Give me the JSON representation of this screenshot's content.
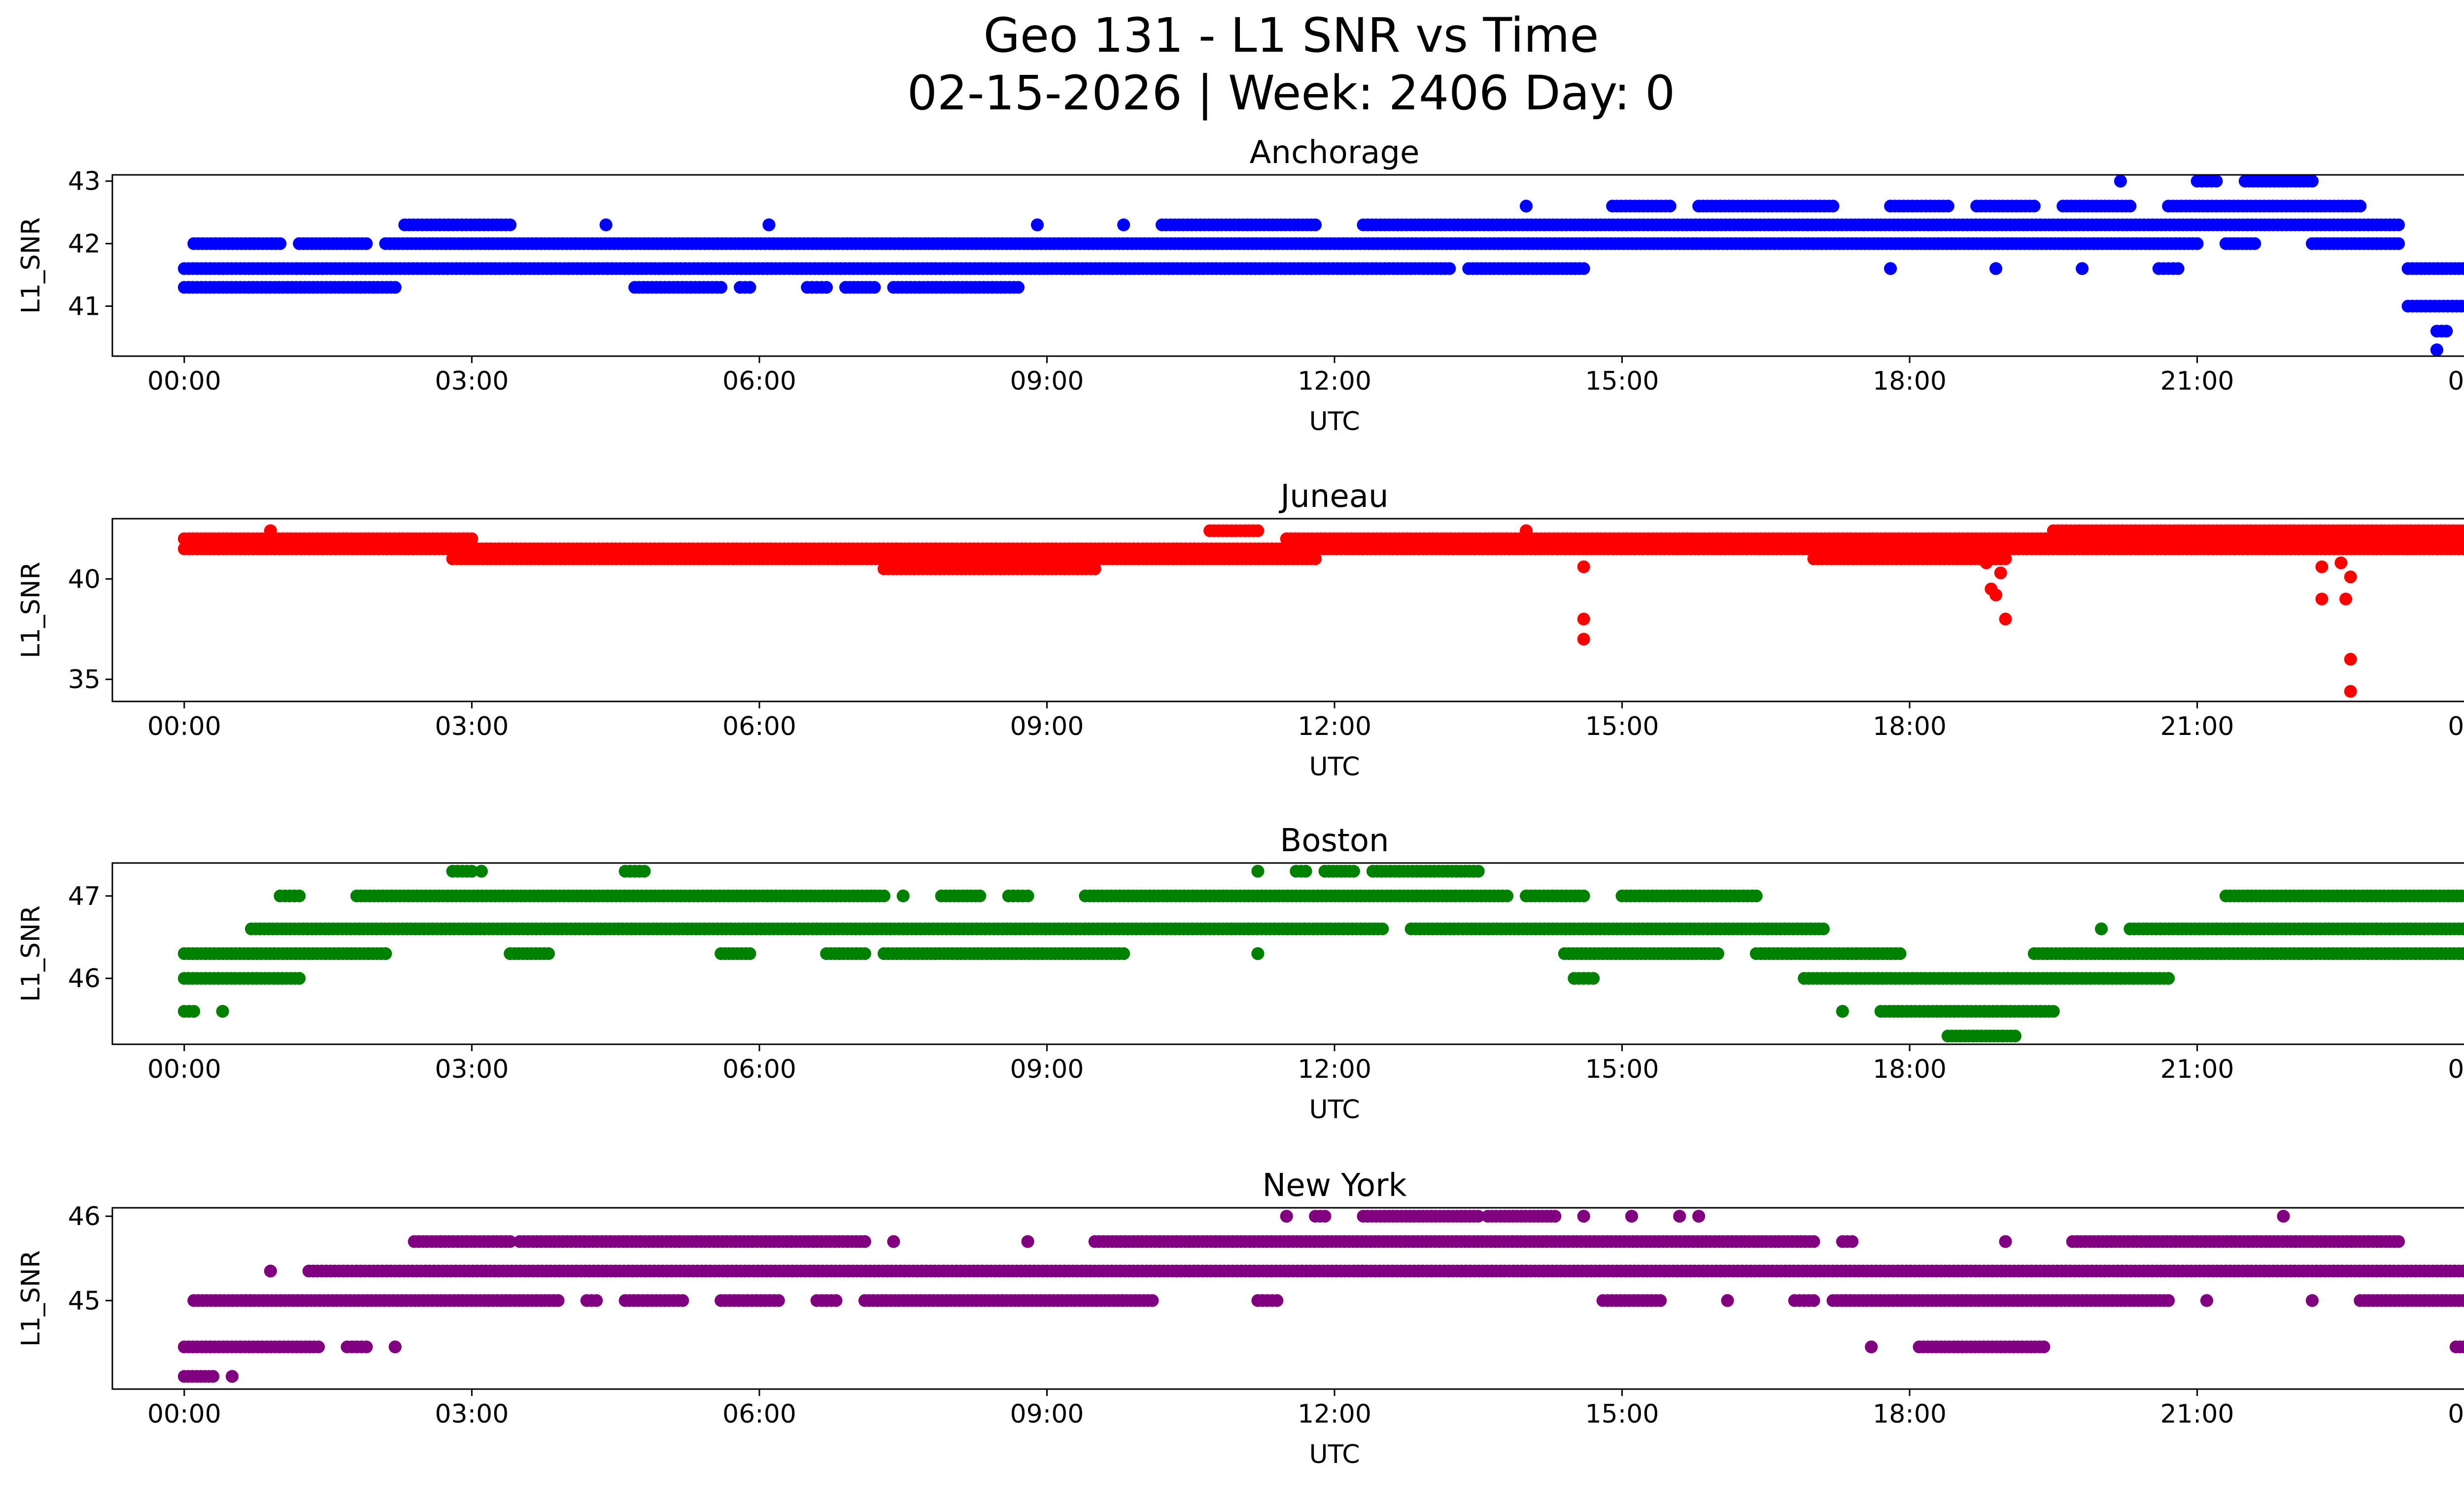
{
  "figure": {
    "title_line1": "Geo 131 - L1 SNR vs Time",
    "title_line2": "02-15-2026 | Week: 2406 Day: 0"
  },
  "chart_data": [
    {
      "type": "scatter",
      "title": "Anchorage",
      "color": "#0000ff",
      "xlabel": "UTC",
      "ylabel": "L1_SNR",
      "xlim": [
        -0.75,
        24.75
      ],
      "ylim": [
        40.2,
        43.1
      ],
      "x_ticks": [
        0,
        3,
        6,
        9,
        12,
        15,
        18,
        21,
        24
      ],
      "x_tick_labels": [
        "00:00",
        "03:00",
        "06:00",
        "09:00",
        "12:00",
        "15:00",
        "18:00",
        "21:00",
        "00:00"
      ],
      "y_ticks": [
        41,
        42,
        43
      ],
      "y_tick_labels": [
        "41",
        "42",
        "43"
      ],
      "bands": [
        {
          "y": 41.3,
          "segments": [
            [
              0,
              2.2
            ],
            [
              4.7,
              5.6
            ],
            [
              5.8,
              5.9
            ],
            [
              6.5,
              6.7
            ],
            [
              6.9,
              7.2
            ],
            [
              7.4,
              8.7
            ]
          ]
        },
        {
          "y": 41.6,
          "segments": [
            [
              0,
              13.2
            ],
            [
              13.4,
              14.6
            ],
            [
              17.8,
              17.8
            ],
            [
              18.9,
              18.9
            ],
            [
              19.8,
              19.8
            ],
            [
              20.6,
              20.8
            ],
            [
              23.2,
              24
            ]
          ]
        },
        {
          "y": 42.0,
          "segments": [
            [
              0.1,
              1.0
            ],
            [
              1.2,
              1.9
            ],
            [
              2.1,
              21.0
            ],
            [
              21.3,
              21.6
            ],
            [
              22.2,
              23.1
            ]
          ]
        },
        {
          "y": 42.3,
          "segments": [
            [
              2.3,
              3.4
            ],
            [
              4.4,
              4.4
            ],
            [
              6.1,
              6.1
            ],
            [
              8.9,
              8.9
            ],
            [
              9.8,
              9.8
            ],
            [
              10.2,
              11.8
            ],
            [
              12.3,
              23.1
            ]
          ]
        },
        {
          "y": 42.6,
          "segments": [
            [
              14.0,
              14.0
            ],
            [
              14.9,
              15.5
            ],
            [
              15.8,
              17.2
            ],
            [
              17.8,
              18.4
            ],
            [
              18.7,
              19.3
            ],
            [
              19.6,
              20.3
            ],
            [
              20.7,
              22.7
            ]
          ]
        },
        {
          "y": 43.0,
          "segments": [
            [
              20.2,
              20.2
            ],
            [
              21.0,
              21.2
            ],
            [
              21.5,
              22.2
            ]
          ]
        },
        {
          "y": 41.0,
          "segments": [
            [
              23.2,
              23.8
            ]
          ]
        },
        {
          "y": 40.6,
          "segments": [
            [
              23.5,
              23.6
            ],
            [
              23.9,
              23.9
            ]
          ]
        },
        {
          "y": 40.3,
          "segments": [
            [
              23.5,
              23.5
            ]
          ]
        }
      ]
    },
    {
      "type": "scatter",
      "title": "Juneau",
      "color": "#ff0000",
      "xlabel": "UTC",
      "ylabel": "L1_SNR",
      "xlim": [
        -0.75,
        24.75
      ],
      "ylim": [
        33.9,
        43.0
      ],
      "x_ticks": [
        0,
        3,
        6,
        9,
        12,
        15,
        18,
        21,
        24
      ],
      "x_tick_labels": [
        "00:00",
        "03:00",
        "06:00",
        "09:00",
        "12:00",
        "15:00",
        "18:00",
        "21:00",
        "00:00"
      ],
      "y_ticks": [
        35,
        40
      ],
      "y_tick_labels": [
        "35",
        "40"
      ],
      "bands": [
        {
          "y": 42.0,
          "segments": [
            [
              0,
              3.0
            ],
            [
              11.5,
              24
            ]
          ]
        },
        {
          "y": 41.5,
          "segments": [
            [
              0,
              24
            ]
          ]
        },
        {
          "y": 41.0,
          "segments": [
            [
              2.8,
              11.8
            ],
            [
              17.0,
              19.0
            ]
          ]
        },
        {
          "y": 40.5,
          "segments": [
            [
              7.3,
              9.5
            ]
          ]
        },
        {
          "y": 42.4,
          "segments": [
            [
              0.9,
              0.9
            ],
            [
              10.7,
              11.2
            ],
            [
              14.0,
              14.0
            ],
            [
              19.5,
              23.9
            ]
          ]
        }
      ],
      "points": [
        [
          14.6,
          40.6
        ],
        [
          14.6,
          38.0
        ],
        [
          14.6,
          37.0
        ],
        [
          18.8,
          40.8
        ],
        [
          18.85,
          39.5
        ],
        [
          18.9,
          39.2
        ],
        [
          18.95,
          40.3
        ],
        [
          19.0,
          38.0
        ],
        [
          18.9,
          41.0
        ],
        [
          22.3,
          40.6
        ],
        [
          22.3,
          39.0
        ],
        [
          22.5,
          40.8
        ],
        [
          22.55,
          39.0
        ],
        [
          22.6,
          40.1
        ],
        [
          22.6,
          36.0
        ],
        [
          22.6,
          34.4
        ]
      ]
    },
    {
      "type": "scatter",
      "title": "Boston",
      "color": "#008000",
      "xlabel": "UTC",
      "ylabel": "L1_SNR",
      "xlim": [
        -0.75,
        24.75
      ],
      "ylim": [
        45.2,
        47.4
      ],
      "x_ticks": [
        0,
        3,
        6,
        9,
        12,
        15,
        18,
        21,
        24
      ],
      "x_tick_labels": [
        "00:00",
        "03:00",
        "06:00",
        "09:00",
        "12:00",
        "15:00",
        "18:00",
        "21:00",
        "00:00"
      ],
      "y_ticks": [
        46,
        47
      ],
      "y_tick_labels": [
        "46",
        "47"
      ],
      "bands": [
        {
          "y": 45.6,
          "segments": [
            [
              0,
              0.1
            ],
            [
              0.4,
              0.4
            ],
            [
              17.3,
              17.3
            ],
            [
              17.7,
              19.5
            ]
          ]
        },
        {
          "y": 46.0,
          "segments": [
            [
              0,
              1.2
            ],
            [
              14.5,
              14.7
            ],
            [
              16.9,
              20.7
            ]
          ]
        },
        {
          "y": 46.3,
          "segments": [
            [
              0,
              2.1
            ],
            [
              3.4,
              3.8
            ],
            [
              5.6,
              5.9
            ],
            [
              6.7,
              7.1
            ],
            [
              7.3,
              9.8
            ],
            [
              11.2,
              11.2
            ],
            [
              14.4,
              16.0
            ],
            [
              16.4,
              17.9
            ],
            [
              19.3,
              24
            ]
          ]
        },
        {
          "y": 46.6,
          "segments": [
            [
              0.7,
              12.5
            ],
            [
              12.8,
              17.1
            ],
            [
              20.0,
              20.0
            ],
            [
              20.3,
              24
            ]
          ]
        },
        {
          "y": 47.0,
          "segments": [
            [
              1.0,
              1.2
            ],
            [
              1.8,
              7.3
            ],
            [
              7.5,
              7.5
            ],
            [
              7.9,
              8.3
            ],
            [
              8.6,
              8.8
            ],
            [
              9.4,
              13.8
            ],
            [
              14.0,
              14.6
            ],
            [
              15.0,
              16.4
            ],
            [
              21.3,
              23.8
            ]
          ]
        },
        {
          "y": 47.3,
          "segments": [
            [
              2.8,
              3.0
            ],
            [
              3.1,
              3.1
            ],
            [
              4.6,
              4.8
            ],
            [
              11.2,
              11.2
            ],
            [
              11.6,
              11.7
            ],
            [
              11.9,
              12.2
            ],
            [
              12.4,
              13.5
            ]
          ]
        },
        {
          "y": 45.3,
          "segments": [
            [
              18.4,
              19.1
            ]
          ]
        }
      ]
    },
    {
      "type": "scatter",
      "title": "New York",
      "color": "#800080",
      "xlabel": "UTC",
      "ylabel": "L1_SNR",
      "xlim": [
        -0.75,
        24.75
      ],
      "ylim": [
        43.95,
        46.1
      ],
      "x_ticks": [
        0,
        3,
        6,
        9,
        12,
        15,
        18,
        21,
        24
      ],
      "x_tick_labels": [
        "00:00",
        "03:00",
        "06:00",
        "09:00",
        "12:00",
        "15:00",
        "18:00",
        "21:00",
        "00:00"
      ],
      "y_ticks": [
        45,
        46
      ],
      "y_tick_labels": [
        "45",
        "46"
      ],
      "bands": [
        {
          "y": 44.1,
          "segments": [
            [
              0,
              0.3
            ],
            [
              0.5,
              0.5
            ]
          ]
        },
        {
          "y": 44.45,
          "segments": [
            [
              0,
              1.4
            ],
            [
              1.7,
              1.9
            ],
            [
              2.2,
              2.2
            ],
            [
              17.6,
              17.6
            ],
            [
              18.1,
              19.4
            ],
            [
              23.7,
              24
            ]
          ]
        },
        {
          "y": 45.0,
          "segments": [
            [
              0.1,
              3.9
            ],
            [
              4.2,
              4.3
            ],
            [
              4.6,
              5.2
            ],
            [
              5.6,
              6.2
            ],
            [
              6.6,
              6.8
            ],
            [
              7.1,
              10.1
            ],
            [
              11.2,
              11.4
            ],
            [
              14.8,
              15.4
            ],
            [
              16.1,
              16.1
            ],
            [
              16.8,
              17.0
            ],
            [
              17.2,
              20.7
            ],
            [
              21.1,
              21.1
            ],
            [
              22.2,
              22.2
            ],
            [
              22.7,
              24
            ]
          ]
        },
        {
          "y": 45.35,
          "segments": [
            [
              0.9,
              0.9
            ],
            [
              1.3,
              24
            ]
          ]
        },
        {
          "y": 45.7,
          "segments": [
            [
              2.4,
              3.4
            ],
            [
              3.5,
              7.1
            ],
            [
              7.4,
              7.4
            ],
            [
              8.8,
              8.8
            ],
            [
              9.5,
              17.0
            ],
            [
              17.3,
              17.4
            ],
            [
              19.0,
              19.0
            ],
            [
              19.7,
              23.1
            ]
          ]
        },
        {
          "y": 46.0,
          "segments": [
            [
              11.5,
              11.5
            ],
            [
              11.8,
              11.9
            ],
            [
              12.3,
              13.5
            ],
            [
              13.6,
              14.3
            ],
            [
              14.6,
              14.6
            ],
            [
              15.1,
              15.1
            ],
            [
              15.6,
              15.6
            ],
            [
              15.8,
              15.8
            ],
            [
              21.9,
              21.9
            ]
          ]
        }
      ]
    }
  ]
}
